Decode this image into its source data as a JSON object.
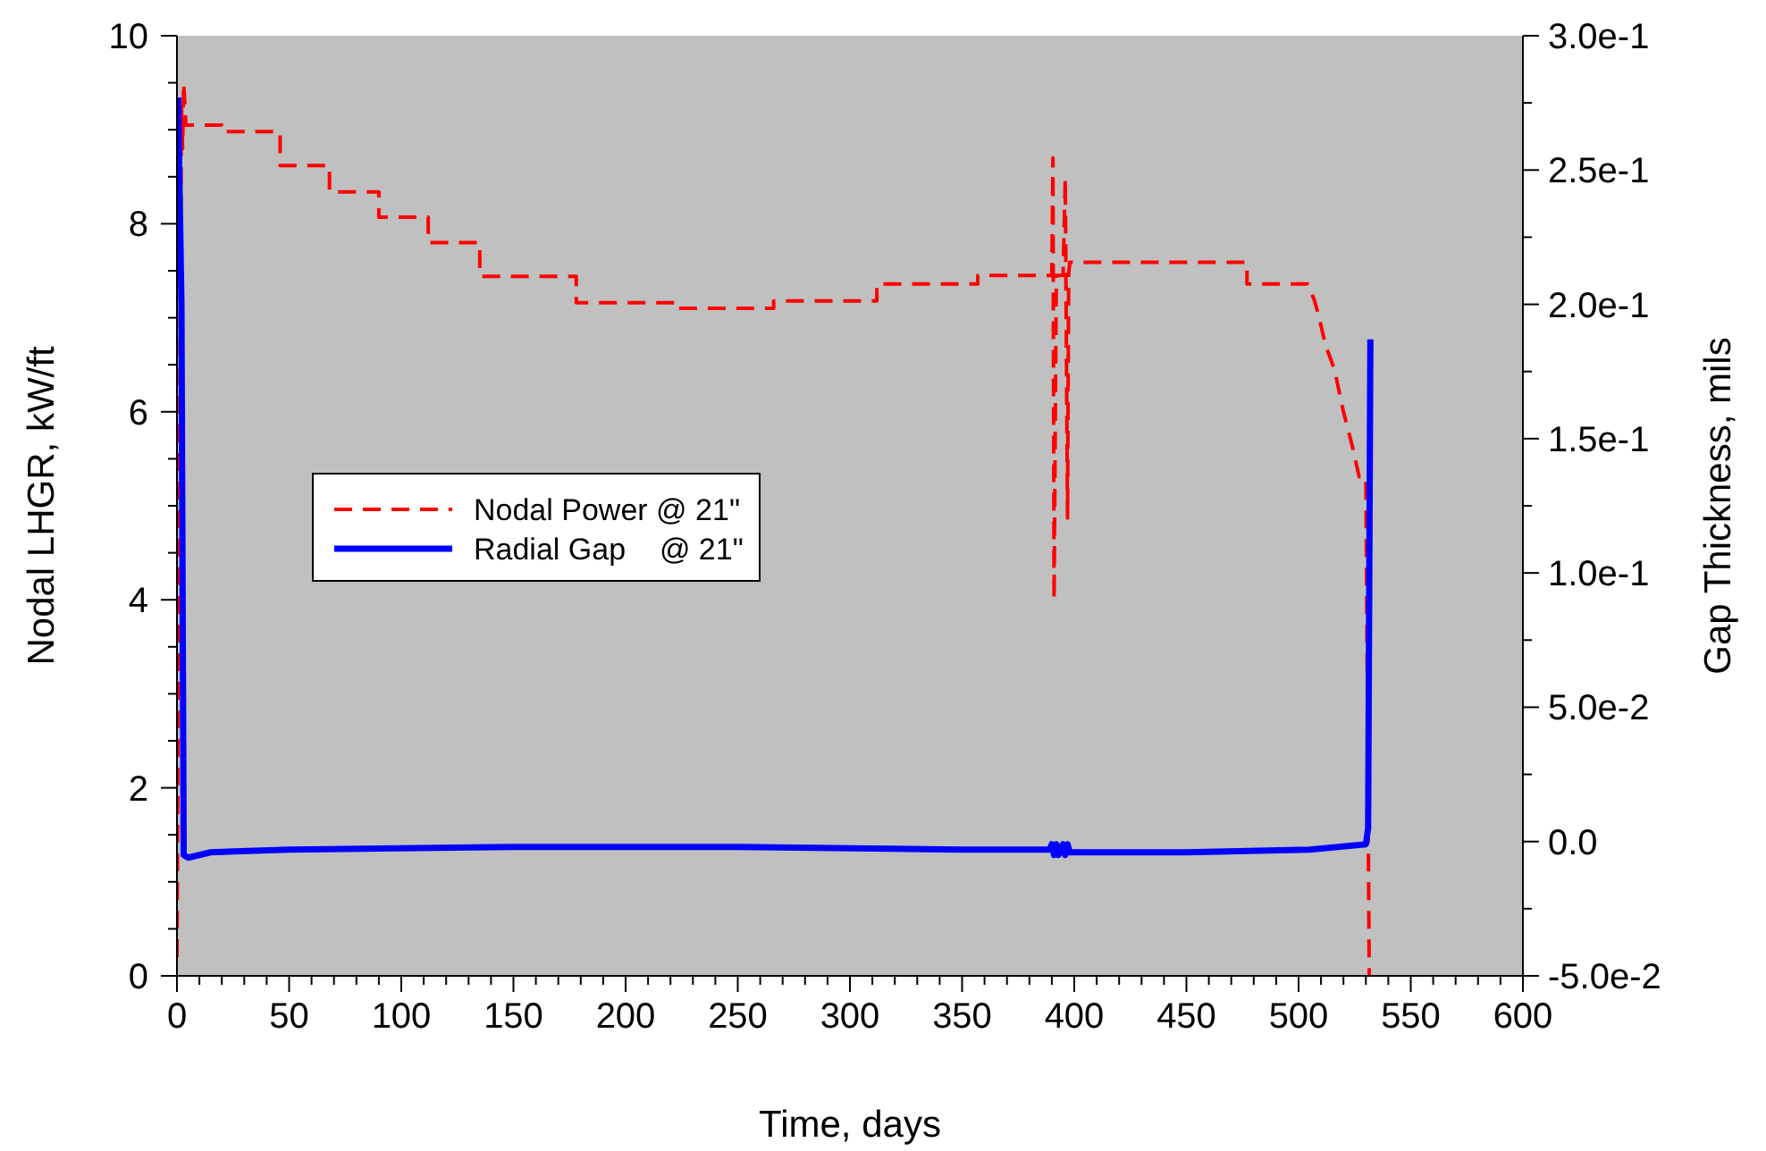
{
  "chart_data": {
    "type": "line",
    "xlabel": "Time, days",
    "ylabel": "Nodal LHGR, kW/ft",
    "y2label": "Gap Thickness, mils",
    "xlim": [
      0,
      600
    ],
    "ylim": [
      0,
      10
    ],
    "y2lim": [
      -0.05,
      0.3
    ],
    "xticks": [
      0,
      50,
      100,
      150,
      200,
      250,
      300,
      350,
      400,
      450,
      500,
      550,
      600,
      {
        "value": 10,
        "label": null
      },
      {
        "value": 20,
        "label": null
      },
      {
        "value": 30,
        "label": null
      },
      {
        "value": 40,
        "label": null
      },
      {
        "value": 60,
        "label": null
      },
      {
        "value": 70,
        "label": null
      },
      {
        "value": 80,
        "label": null
      },
      {
        "value": 90,
        "label": null
      },
      {
        "value": 110,
        "label": null
      },
      {
        "value": 120,
        "label": null
      },
      {
        "value": 130,
        "label": null
      },
      {
        "value": 140,
        "label": null
      },
      {
        "value": 160,
        "label": null
      },
      {
        "value": 170,
        "label": null
      },
      {
        "value": 180,
        "label": null
      },
      {
        "value": 190,
        "label": null
      },
      {
        "value": 210,
        "label": null
      },
      {
        "value": 220,
        "label": null
      },
      {
        "value": 230,
        "label": null
      },
      {
        "value": 240,
        "label": null
      },
      {
        "value": 260,
        "label": null
      },
      {
        "value": 270,
        "label": null
      },
      {
        "value": 280,
        "label": null
      },
      {
        "value": 290,
        "label": null
      },
      {
        "value": 310,
        "label": null
      },
      {
        "value": 320,
        "label": null
      },
      {
        "value": 330,
        "label": null
      },
      {
        "value": 340,
        "label": null
      },
      {
        "value": 360,
        "label": null
      },
      {
        "value": 370,
        "label": null
      },
      {
        "value": 380,
        "label": null
      },
      {
        "value": 390,
        "label": null
      },
      {
        "value": 410,
        "label": null
      },
      {
        "value": 420,
        "label": null
      },
      {
        "value": 430,
        "label": null
      },
      {
        "value": 440,
        "label": null
      },
      {
        "value": 460,
        "label": null
      },
      {
        "value": 470,
        "label": null
      },
      {
        "value": 480,
        "label": null
      },
      {
        "value": 490,
        "label": null
      },
      {
        "value": 510,
        "label": null
      },
      {
        "value": 520,
        "label": null
      },
      {
        "value": 530,
        "label": null
      },
      {
        "value": 540,
        "label": null
      },
      {
        "value": 560,
        "label": null
      },
      {
        "value": 570,
        "label": null
      },
      {
        "value": 580,
        "label": null
      },
      {
        "value": 590,
        "label": null
      }
    ],
    "yticks": [
      0,
      2,
      4,
      6,
      8,
      10,
      {
        "value": 0.5,
        "label": null
      },
      {
        "value": 1,
        "label": null
      },
      {
        "value": 1.5,
        "label": null
      },
      {
        "value": 2.5,
        "label": null
      },
      {
        "value": 3,
        "label": null
      },
      {
        "value": 3.5,
        "label": null
      },
      {
        "value": 4.5,
        "label": null
      },
      {
        "value": 5,
        "label": null
      },
      {
        "value": 5.5,
        "label": null
      },
      {
        "value": 6.5,
        "label": null
      },
      {
        "value": 7,
        "label": null
      },
      {
        "value": 7.5,
        "label": null
      },
      {
        "value": 8.5,
        "label": null
      },
      {
        "value": 9,
        "label": null
      },
      {
        "value": 9.5,
        "label": null
      }
    ],
    "y2ticks": [
      {
        "value": -0.05,
        "label": "-5.0e-2"
      },
      {
        "value": 0,
        "label": "0.0"
      },
      {
        "value": 0.05,
        "label": "5.0e-2"
      },
      {
        "value": 0.1,
        "label": "1.0e-1"
      },
      {
        "value": 0.15,
        "label": "1.5e-1"
      },
      {
        "value": 0.2,
        "label": "2.0e-1"
      },
      {
        "value": 0.25,
        "label": "2.5e-1"
      },
      {
        "value": 0.3,
        "label": "3.0e-1"
      },
      {
        "value": -0.025,
        "label": null
      },
      {
        "value": 0.025,
        "label": null
      },
      {
        "value": 0.075,
        "label": null
      },
      {
        "value": 0.125,
        "label": null
      },
      {
        "value": 0.175,
        "label": null
      },
      {
        "value": 0.225,
        "label": null
      },
      {
        "value": 0.275,
        "label": null
      }
    ],
    "grid": false,
    "legend": "left",
    "series": [
      {
        "name": "Nodal Power @ 21\"",
        "color": "#ff0000",
        "line_style": "dashed",
        "x": [
          0,
          1,
          2,
          2.5,
          3,
          4,
          20,
          20,
          46,
          46,
          68,
          68,
          90,
          90,
          112,
          112,
          135,
          135,
          178,
          178,
          222,
          222,
          266,
          266,
          312,
          312,
          357,
          357,
          390,
          390.5,
          391,
          392,
          395,
          396,
          397,
          397.5,
          398,
          477,
          477,
          504,
          507,
          509,
          512,
          516,
          520,
          524,
          527,
          530,
          531.5
        ],
        "values": [
          0.2,
          5,
          9.3,
          8.8,
          9.5,
          9.05,
          9.05,
          8.98,
          8.98,
          8.62,
          8.62,
          8.34,
          8.34,
          8.07,
          8.07,
          7.8,
          7.8,
          7.44,
          7.44,
          7.16,
          7.16,
          7.1,
          7.1,
          7.18,
          7.18,
          7.36,
          7.36,
          7.45,
          7.45,
          8.7,
          4.0,
          7.45,
          7.45,
          8.48,
          4.87,
          7.45,
          7.59,
          7.59,
          7.36,
          7.36,
          7.19,
          7.02,
          6.71,
          6.45,
          6.0,
          5.63,
          5.31,
          5.31,
          0
        ]
      },
      {
        "name": "Radial Gap    @ 21\"",
        "color": "#0000ff",
        "line_style": "solid",
        "axis": "y2",
        "x": [
          0.5,
          2,
          3,
          5,
          15,
          50,
          150,
          250,
          350,
          389,
          390,
          391,
          392,
          393,
          395,
          396,
          397,
          398,
          450,
          505,
          530,
          531,
          532
        ],
        "values": [
          0.277,
          0.2,
          -0.005,
          -0.006,
          -0.004,
          -0.003,
          -0.002,
          -0.002,
          -0.003,
          -0.003,
          -0.001,
          -0.005,
          -0.001,
          -0.005,
          -0.001,
          -0.005,
          -0.001,
          -0.004,
          -0.004,
          -0.003,
          -0.001,
          0.005,
          0.187
        ]
      }
    ]
  }
}
